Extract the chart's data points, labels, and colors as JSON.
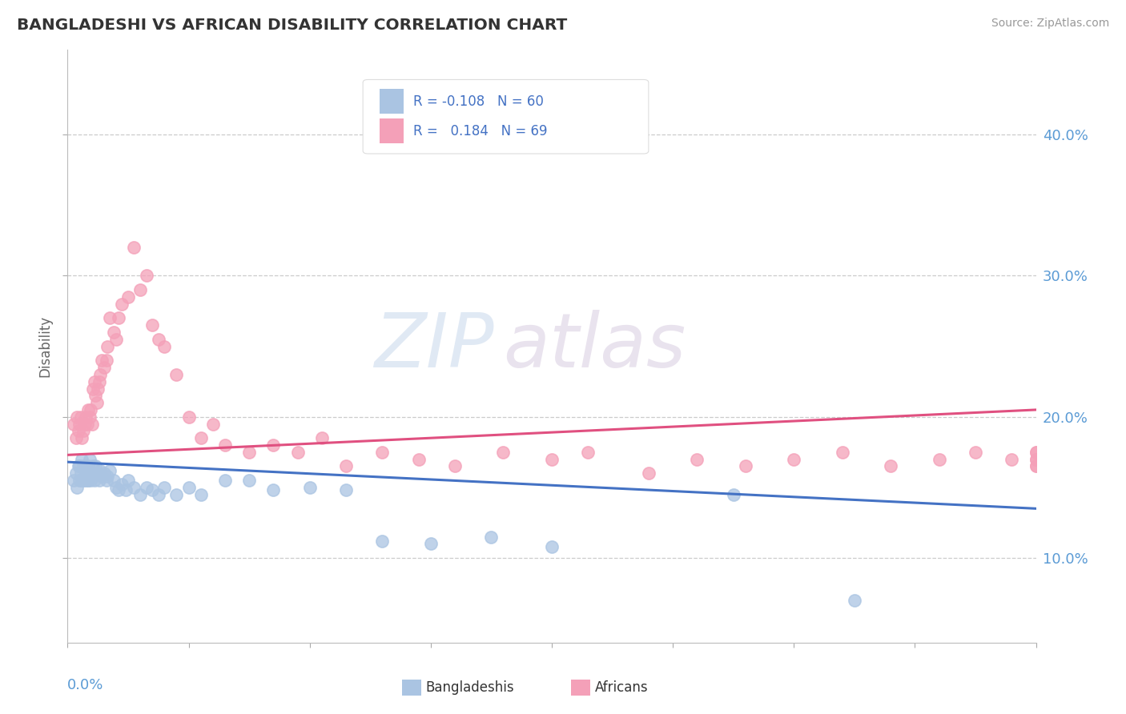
{
  "title": "BANGLADESHI VS AFRICAN DISABILITY CORRELATION CHART",
  "source": "Source: ZipAtlas.com",
  "ylabel": "Disability",
  "ylabel_right_ticks": [
    "10.0%",
    "20.0%",
    "30.0%",
    "40.0%"
  ],
  "ylabel_right_vals": [
    0.1,
    0.2,
    0.3,
    0.4
  ],
  "xlim": [
    0.0,
    0.8
  ],
  "ylim": [
    0.04,
    0.46
  ],
  "color_bangladeshi": "#aac4e2",
  "color_african": "#f4a0b8",
  "color_line_bangladeshi": "#4472c4",
  "color_line_african": "#e05080",
  "watermark_zip": "ZIP",
  "watermark_atlas": "atlas",
  "bang_R": -0.108,
  "bang_N": 60,
  "afr_R": 0.184,
  "afr_N": 69,
  "bangladeshi_x": [
    0.005,
    0.007,
    0.008,
    0.009,
    0.01,
    0.01,
    0.011,
    0.012,
    0.012,
    0.013,
    0.013,
    0.014,
    0.015,
    0.015,
    0.016,
    0.016,
    0.017,
    0.017,
    0.018,
    0.018,
    0.019,
    0.02,
    0.021,
    0.022,
    0.022,
    0.023,
    0.025,
    0.026,
    0.027,
    0.028,
    0.03,
    0.032,
    0.033,
    0.035,
    0.038,
    0.04,
    0.042,
    0.045,
    0.048,
    0.05,
    0.055,
    0.06,
    0.065,
    0.07,
    0.075,
    0.08,
    0.09,
    0.1,
    0.11,
    0.13,
    0.15,
    0.17,
    0.2,
    0.23,
    0.26,
    0.3,
    0.35,
    0.4,
    0.55,
    0.65
  ],
  "bangladeshi_y": [
    0.155,
    0.16,
    0.15,
    0.165,
    0.155,
    0.165,
    0.16,
    0.155,
    0.17,
    0.155,
    0.165,
    0.155,
    0.16,
    0.165,
    0.155,
    0.16,
    0.165,
    0.155,
    0.16,
    0.17,
    0.155,
    0.16,
    0.165,
    0.16,
    0.155,
    0.165,
    0.16,
    0.155,
    0.162,
    0.158,
    0.16,
    0.155,
    0.158,
    0.162,
    0.155,
    0.15,
    0.148,
    0.152,
    0.148,
    0.155,
    0.15,
    0.145,
    0.15,
    0.148,
    0.145,
    0.15,
    0.145,
    0.15,
    0.145,
    0.155,
    0.155,
    0.148,
    0.15,
    0.148,
    0.112,
    0.11,
    0.115,
    0.108,
    0.145,
    0.07
  ],
  "african_x": [
    0.005,
    0.007,
    0.008,
    0.009,
    0.01,
    0.011,
    0.012,
    0.013,
    0.014,
    0.015,
    0.016,
    0.017,
    0.018,
    0.019,
    0.02,
    0.021,
    0.022,
    0.023,
    0.024,
    0.025,
    0.026,
    0.027,
    0.028,
    0.03,
    0.032,
    0.033,
    0.035,
    0.038,
    0.04,
    0.042,
    0.045,
    0.05,
    0.055,
    0.06,
    0.065,
    0.07,
    0.075,
    0.08,
    0.09,
    0.1,
    0.11,
    0.12,
    0.13,
    0.15,
    0.17,
    0.19,
    0.21,
    0.23,
    0.26,
    0.29,
    0.32,
    0.36,
    0.4,
    0.43,
    0.48,
    0.52,
    0.56,
    0.6,
    0.64,
    0.68,
    0.72,
    0.75,
    0.78,
    0.8,
    0.8,
    0.8,
    0.8,
    0.8,
    0.8
  ],
  "african_y": [
    0.195,
    0.185,
    0.2,
    0.19,
    0.195,
    0.2,
    0.185,
    0.19,
    0.195,
    0.2,
    0.195,
    0.205,
    0.2,
    0.205,
    0.195,
    0.22,
    0.225,
    0.215,
    0.21,
    0.22,
    0.225,
    0.23,
    0.24,
    0.235,
    0.24,
    0.25,
    0.27,
    0.26,
    0.255,
    0.27,
    0.28,
    0.285,
    0.32,
    0.29,
    0.3,
    0.265,
    0.255,
    0.25,
    0.23,
    0.2,
    0.185,
    0.195,
    0.18,
    0.175,
    0.18,
    0.175,
    0.185,
    0.165,
    0.175,
    0.17,
    0.165,
    0.175,
    0.17,
    0.175,
    0.16,
    0.17,
    0.165,
    0.17,
    0.175,
    0.165,
    0.17,
    0.175,
    0.17,
    0.165,
    0.175,
    0.17,
    0.165,
    0.175,
    0.17
  ]
}
